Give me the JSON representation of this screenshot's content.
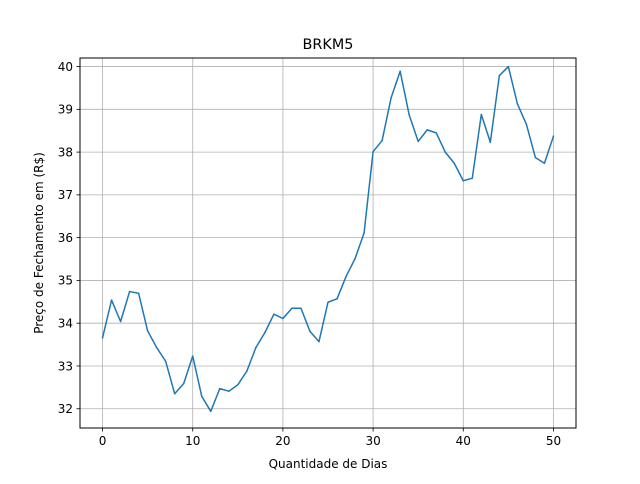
{
  "chart_data": {
    "type": "line",
    "title": "BRKM5",
    "xlabel": "Quantidade de Dias",
    "ylabel": "Preço de Fechamento em (R$)",
    "xlim": [
      -2.5,
      52.5
    ],
    "ylim": [
      31.55,
      40.2
    ],
    "grid": true,
    "color": "#1f77b4",
    "x_ticks": [
      {
        "value": 0,
        "label": "0"
      },
      {
        "value": 10,
        "label": "10"
      },
      {
        "value": 20,
        "label": "20"
      },
      {
        "value": 30,
        "label": "30"
      },
      {
        "value": 40,
        "label": "40"
      },
      {
        "value": 50,
        "label": "50"
      }
    ],
    "y_ticks": [
      {
        "value": 32,
        "label": "32"
      },
      {
        "value": 33,
        "label": "33"
      },
      {
        "value": 34,
        "label": "34"
      },
      {
        "value": 35,
        "label": "35"
      },
      {
        "value": 36,
        "label": "36"
      },
      {
        "value": 37,
        "label": "37"
      },
      {
        "value": 38,
        "label": "38"
      },
      {
        "value": 39,
        "label": "39"
      },
      {
        "value": 40,
        "label": "40"
      }
    ],
    "x": [
      0,
      1,
      2,
      3,
      4,
      5,
      6,
      7,
      8,
      9,
      10,
      11,
      12,
      13,
      14,
      15,
      16,
      17,
      18,
      19,
      20,
      21,
      22,
      23,
      24,
      25,
      26,
      27,
      28,
      29,
      30,
      31,
      32,
      33,
      34,
      35,
      36,
      37,
      38,
      39,
      40,
      41,
      42,
      43,
      44,
      45,
      46,
      47,
      48,
      49,
      50
    ],
    "y": [
      33.66,
      34.54,
      34.04,
      34.74,
      34.7,
      33.82,
      33.43,
      33.11,
      32.35,
      32.59,
      33.23,
      32.29,
      31.94,
      32.47,
      32.41,
      32.56,
      32.88,
      33.43,
      33.78,
      34.21,
      34.11,
      34.35,
      34.35,
      33.81,
      33.57,
      34.49,
      34.57,
      35.09,
      35.51,
      36.11,
      38.01,
      38.27,
      39.27,
      39.89,
      38.87,
      38.25,
      38.52,
      38.45,
      38.0,
      37.74,
      37.33,
      37.39,
      38.88,
      38.23,
      39.79,
      40.0,
      39.13,
      38.65,
      37.87,
      37.74,
      38.37
    ]
  }
}
